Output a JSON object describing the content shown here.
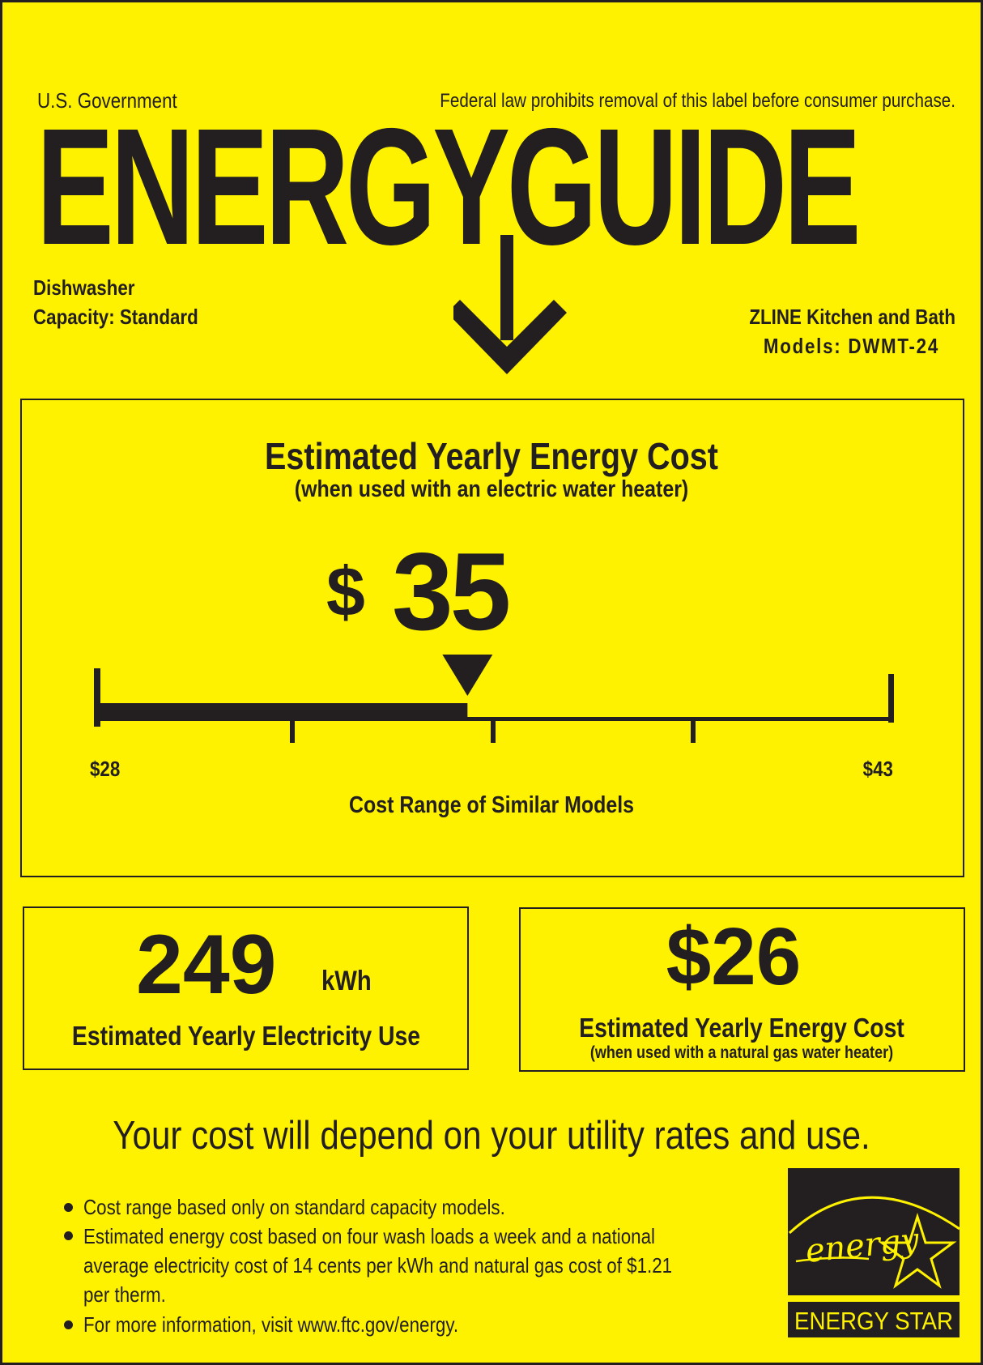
{
  "header": {
    "government": "U.S. Government",
    "notice": "Federal law prohibits removal of this label before consumer purchase.",
    "title": "ENERGYGUIDE"
  },
  "product": {
    "type": "Dishwasher",
    "capacity": "Capacity: Standard",
    "manufacturer": "ZLINE Kitchen and Bath",
    "models": "Models: DWMT-24"
  },
  "main": {
    "title": "Estimated Yearly Energy Cost",
    "subtitle": "(when used with an electric water heater)",
    "currency": "$",
    "cost": "35",
    "range_min": "$28",
    "range_max": "$43",
    "range_min_value": 28,
    "range_max_value": 43,
    "cost_value": 35,
    "range_label": "Cost Range of Similar Models"
  },
  "electricity": {
    "value": "249",
    "unit": "kWh",
    "label": "Estimated Yearly Electricity Use"
  },
  "gas": {
    "value": "$26",
    "label": "Estimated Yearly Energy Cost",
    "sublabel": "(when used with a natural gas water heater)"
  },
  "disclaimer": "Your cost will depend on your utility rates and use.",
  "notes": [
    "Cost range based only on standard capacity models.",
    "Estimated energy cost based on four wash loads a week and a national",
    "average electricity cost of 14 cents per kWh and natural gas cost of $1.21",
    "per therm.",
    "For more information, visit www.ftc.gov/energy."
  ],
  "logo": {
    "script": "energy",
    "label": "ENERGY STAR",
    "colors": {
      "background": "#231f20",
      "foreground": "#fff200"
    }
  },
  "colors": {
    "label_background": "#fff200",
    "ink": "#231f20"
  }
}
